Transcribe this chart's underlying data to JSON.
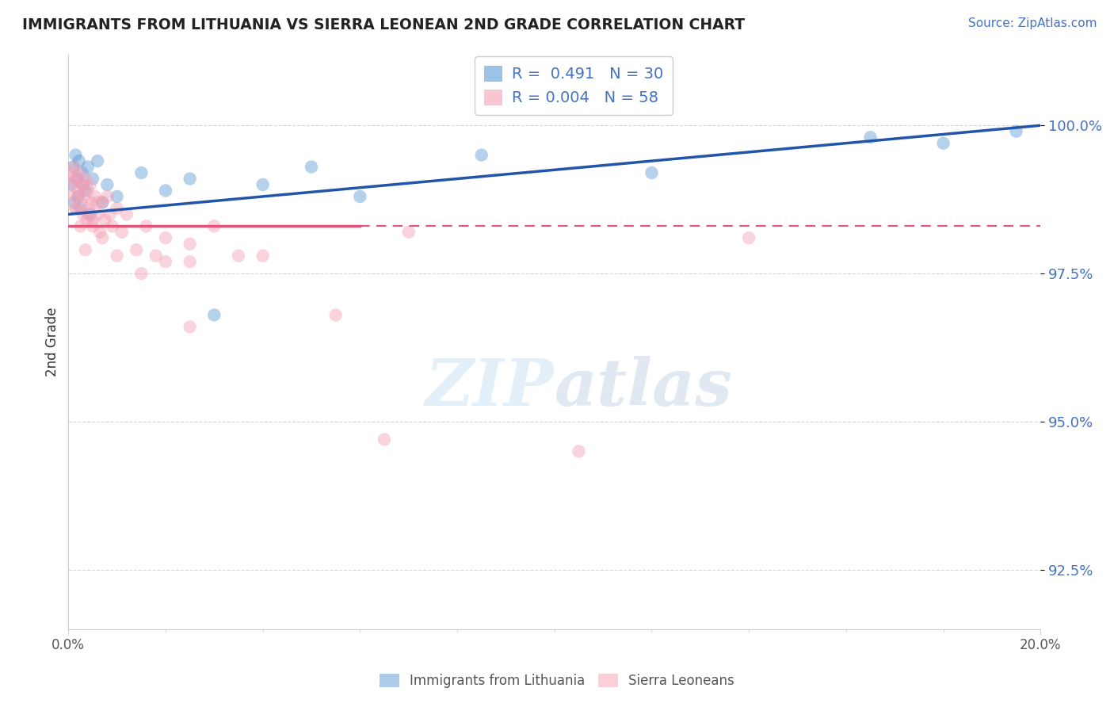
{
  "title": "IMMIGRANTS FROM LITHUANIA VS SIERRA LEONEAN 2ND GRADE CORRELATION CHART",
  "source": "Source: ZipAtlas.com",
  "ylabel": "2nd Grade",
  "yticks": [
    92.5,
    95.0,
    97.5,
    100.0
  ],
  "xlim": [
    0.0,
    20.0
  ],
  "ylim": [
    91.5,
    101.2
  ],
  "legend_r1": "R =  0.491   N = 30",
  "legend_r2": "R = 0.004   N = 58",
  "blue_color": "#5b9bd5",
  "pink_color": "#f4a0b5",
  "blue_line_color": "#2255aa",
  "pink_line_color": "#e05578",
  "pink_line_y": 98.3,
  "blue_line_y0": 98.5,
  "blue_line_y1": 100.0,
  "pink_solid_end_x": 6.0,
  "blue_scatter_x": [
    0.05,
    0.1,
    0.12,
    0.15,
    0.18,
    0.2,
    0.22,
    0.25,
    0.28,
    0.3,
    0.35,
    0.4,
    0.45,
    0.5,
    0.6,
    0.7,
    0.8,
    1.0,
    1.5,
    2.0,
    2.5,
    3.0,
    4.0,
    5.0,
    6.0,
    8.5,
    12.0,
    16.5,
    18.0,
    19.5
  ],
  "blue_scatter_y": [
    99.0,
    99.3,
    98.7,
    99.5,
    99.1,
    98.8,
    99.4,
    98.6,
    99.2,
    99.0,
    98.9,
    99.3,
    98.5,
    99.1,
    99.4,
    98.7,
    99.0,
    98.8,
    99.2,
    98.9,
    99.1,
    96.8,
    99.0,
    99.3,
    98.8,
    99.5,
    99.2,
    99.8,
    99.7,
    99.9
  ],
  "pink_scatter_x": [
    0.05,
    0.08,
    0.1,
    0.12,
    0.15,
    0.18,
    0.2,
    0.22,
    0.25,
    0.28,
    0.3,
    0.32,
    0.35,
    0.38,
    0.4,
    0.42,
    0.45,
    0.48,
    0.5,
    0.55,
    0.6,
    0.65,
    0.7,
    0.75,
    0.8,
    0.85,
    0.9,
    1.0,
    1.1,
    1.2,
    1.4,
    1.6,
    1.8,
    2.0,
    2.5,
    3.0,
    3.5,
    4.0,
    5.5,
    7.0,
    0.15,
    0.25,
    0.35,
    0.5,
    0.6,
    0.7,
    1.0,
    1.5,
    2.0,
    2.5,
    0.1,
    0.2,
    0.3,
    0.4,
    2.5,
    6.5,
    10.5,
    14.0
  ],
  "pink_scatter_y": [
    99.2,
    99.0,
    98.8,
    99.3,
    98.6,
    99.1,
    98.9,
    99.2,
    98.7,
    99.0,
    98.5,
    98.8,
    99.1,
    98.4,
    98.9,
    98.6,
    99.0,
    98.7,
    98.3,
    98.8,
    98.5,
    98.2,
    98.7,
    98.4,
    98.8,
    98.5,
    98.3,
    98.6,
    98.2,
    98.5,
    97.9,
    98.3,
    97.8,
    98.1,
    97.7,
    98.3,
    97.8,
    97.8,
    96.8,
    98.2,
    98.6,
    98.3,
    97.9,
    98.4,
    98.7,
    98.1,
    97.8,
    97.5,
    97.7,
    98.0,
    99.1,
    98.8,
    99.0,
    98.5,
    96.6,
    94.7,
    94.5,
    98.1
  ]
}
